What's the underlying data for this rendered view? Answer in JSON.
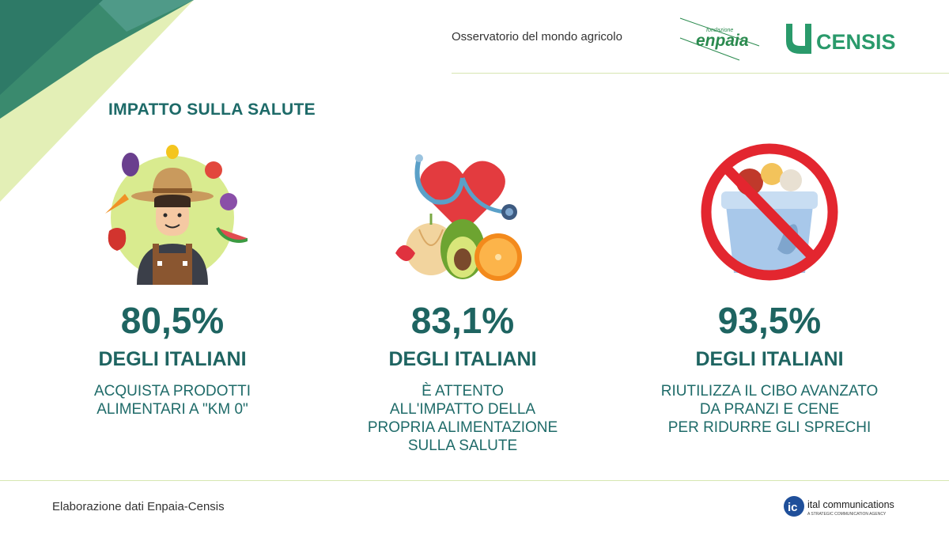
{
  "header": {
    "observatory": "Osservatorio del mondo agricolo",
    "logos": {
      "enpaia_small": "fondazione",
      "enpaia_main": "enpaia",
      "censis": "CENSIS"
    }
  },
  "section_title": "IMPATTO SULLA SALUTE",
  "stats": [
    {
      "icon": "farmer-with-vegetables-icon",
      "percent": "80,5%",
      "subject": "DEGLI ITALIANI",
      "description": "ACQUISTA PRODOTTI\nALIMENTARI A \"KM 0\""
    },
    {
      "icon": "healthy-food-heart-stethoscope-icon",
      "percent": "83,1%",
      "subject": "DEGLI ITALIANI",
      "description": "È ATTENTO\nALL'IMPATTO DELLA\nPROPRIA ALIMENTAZIONE\nSULLA SALUTE"
    },
    {
      "icon": "no-food-waste-bin-icon",
      "percent": "93,5%",
      "subject": "DEGLI ITALIANI",
      "description": "RIUTILIZZA IL CIBO AVANZATO\nDA PRANZI E CENE\nPER RIDURRE GLI SPRECHI"
    }
  ],
  "footer": {
    "credit": "Elaborazione dati Enpaia-Censis",
    "agency_name": "ital communications",
    "agency_tagline": "A STRATEGIC COMMUNICATION AGENCY",
    "agency_mark": "ic"
  },
  "colors": {
    "primary": "#1e6461",
    "corner_dark": "#2f7d6b",
    "corner_light": "#d7e99c",
    "rule": "#d6e6b1",
    "censis_green": "#2a9a6b"
  }
}
